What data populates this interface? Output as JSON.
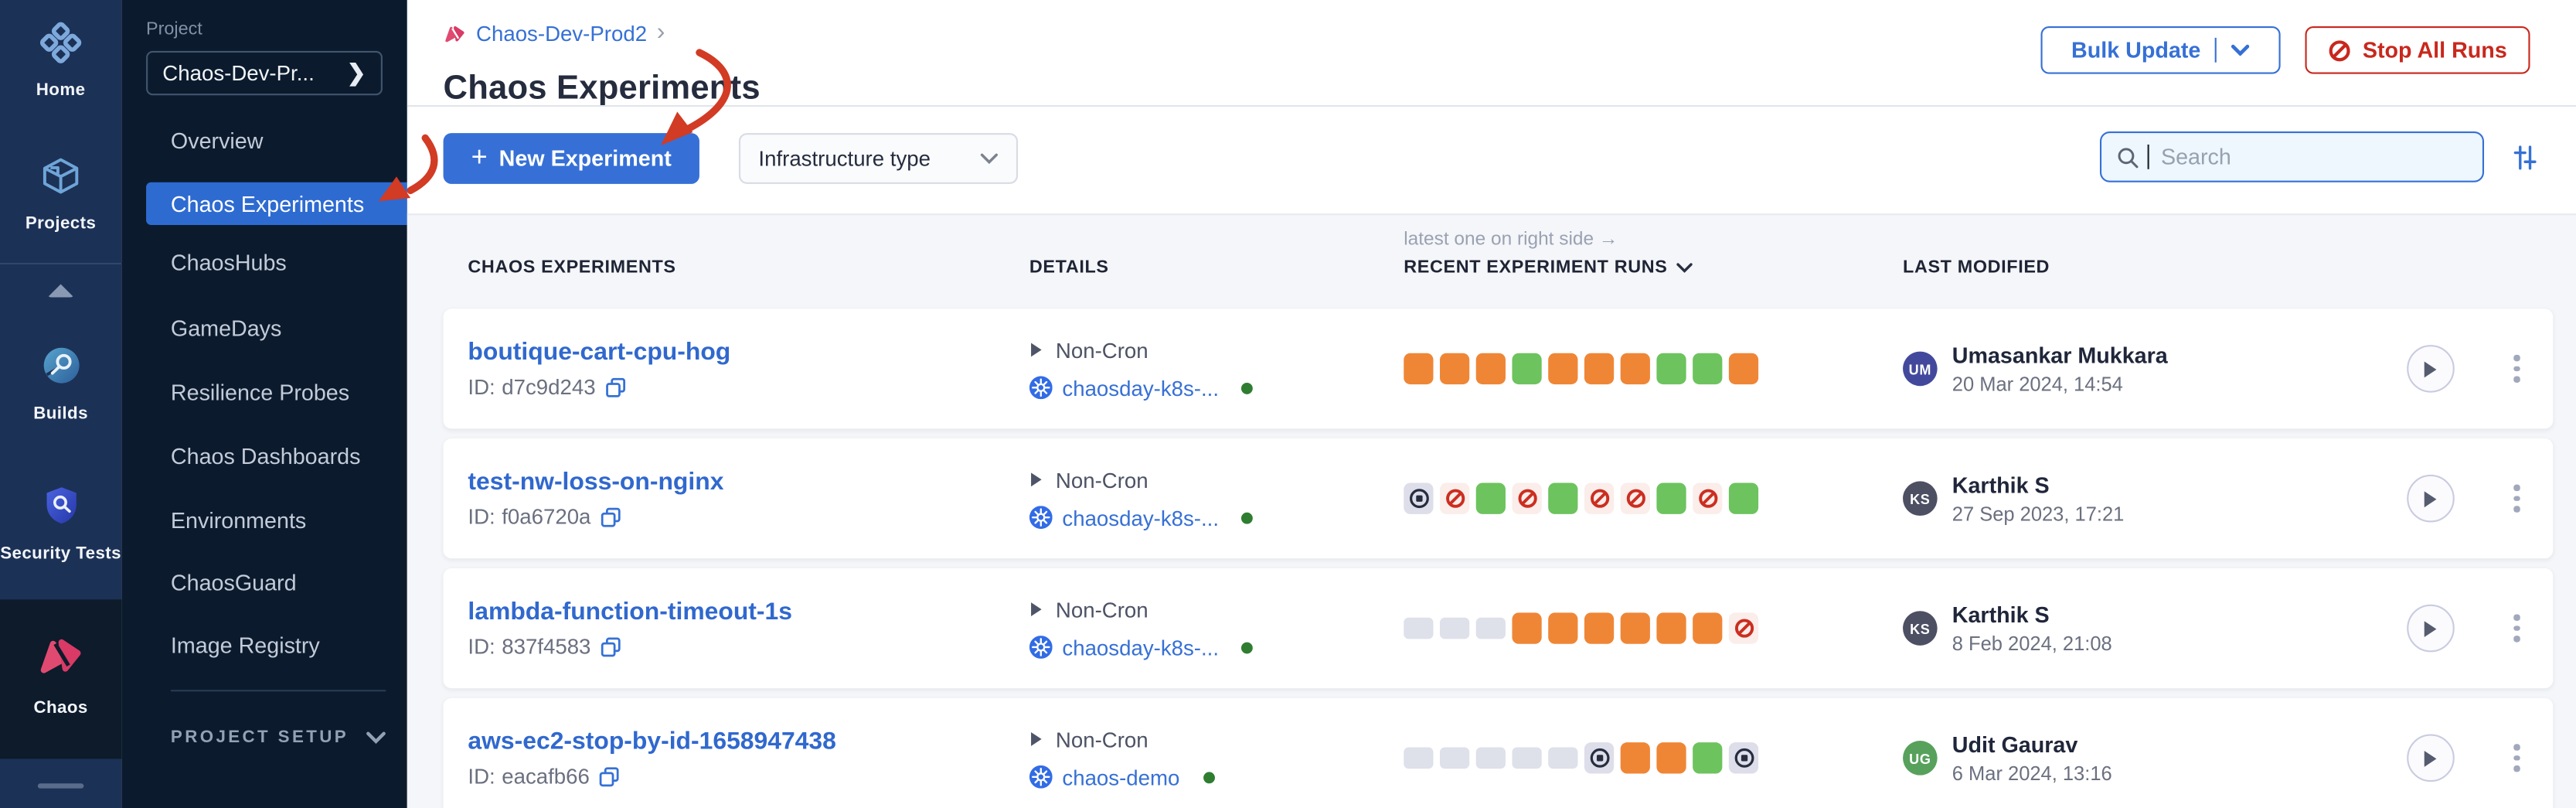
{
  "colors": {
    "accent_blue": "#3670D6",
    "link_blue": "#3068CE",
    "danger_red": "#C8281D",
    "menu_selected": "#2E6BD1",
    "chaos_pink": "#E14A70",
    "run_success": "#6DC35E",
    "run_warning": "#EF8636",
    "run_failed": "#CB2E20",
    "run_failed_bg": "#FAEDEA",
    "run_stopped": "#262D40",
    "run_stopped_bg": "#DDDEE9",
    "run_empty": "#DEE0EA",
    "status_green": "#2F7D31",
    "k8s_blue": "#326CE5",
    "annotation_red": "#D23B24",
    "rail_bg": "#1C3156",
    "panel_bg": "#0B1B2D",
    "rail_selected_bg": "#0D1B2B",
    "table_bg": "#F4F6F9"
  },
  "rail": {
    "items": [
      {
        "label": "Home"
      },
      {
        "label": "Projects"
      },
      {
        "label": "Builds"
      },
      {
        "label": "Security Tests"
      },
      {
        "label": "Chaos",
        "selected": true
      }
    ]
  },
  "panel": {
    "section_label": "Project",
    "project_selector": "Chaos-Dev-Pr...",
    "selector_chevron": "❯",
    "menu": [
      "Overview",
      "Chaos Experiments",
      "ChaosHubs",
      "GameDays",
      "Resilience Probes",
      "Chaos Dashboards",
      "Environments",
      "ChaosGuard",
      "Image Registry"
    ],
    "selected_index": 1,
    "footer": "PROJECT SETUP"
  },
  "header": {
    "breadcrumb": "Chaos-Dev-Prod2",
    "breadcrumb_chevron": "›",
    "title": "Chaos Experiments",
    "bulk_update_label": "Bulk Update",
    "stop_all_label": "Stop All Runs"
  },
  "toolbar": {
    "new_experiment_plus": "+",
    "new_experiment_label": "New Experiment",
    "infra_filter_label": "Infrastructure type",
    "search_placeholder": "Search"
  },
  "table": {
    "note": "latest one on right side →",
    "id_prefix": "ID:",
    "columns": [
      "CHAOS EXPERIMENTS",
      "DETAILS",
      "RECENT EXPERIMENT RUNS",
      "LAST MODIFIED"
    ],
    "rows": [
      {
        "name": "boutique-cart-cpu-hog",
        "id": "d7c9d243",
        "schedule": "Non-Cron",
        "infra": "chaosday-k8s-...",
        "runs": [
          "warning",
          "warning",
          "warning",
          "success",
          "warning",
          "warning",
          "warning",
          "success",
          "success",
          "warning"
        ],
        "user": {
          "initials": "UM",
          "name": "Umasankar Mukkara",
          "avatar_color": "#42499C"
        },
        "date": "20 Mar 2024, 14:54"
      },
      {
        "name": "test-nw-loss-on-nginx",
        "id": "f0a6720a",
        "schedule": "Non-Cron",
        "infra": "chaosday-k8s-...",
        "runs": [
          "stopped",
          "failed",
          "success",
          "failed",
          "success",
          "failed",
          "failed",
          "success",
          "failed",
          "success"
        ],
        "user": {
          "initials": "KS",
          "name": "Karthik S",
          "avatar_color": "#4D4F63"
        },
        "date": "27 Sep 2023, 17:21"
      },
      {
        "name": "lambda-function-timeout-1s",
        "id": "837f4583",
        "schedule": "Non-Cron",
        "infra": "chaosday-k8s-...",
        "runs": [
          "empty",
          "empty",
          "empty",
          "warning",
          "warning",
          "warning",
          "warning",
          "warning",
          "warning",
          "failed"
        ],
        "user": {
          "initials": "KS",
          "name": "Karthik S",
          "avatar_color": "#4D4F63"
        },
        "date": "8 Feb 2024, 21:08"
      },
      {
        "name": "aws-ec2-stop-by-id-1658947438",
        "id": "eacafb66",
        "schedule": "Non-Cron",
        "infra": "chaos-demo",
        "runs": [
          "empty",
          "empty",
          "empty",
          "empty",
          "empty",
          "stopped",
          "warning",
          "warning",
          "success",
          "stopped"
        ],
        "user": {
          "initials": "UG",
          "name": "Udit Gaurav",
          "avatar_color": "#57A15C"
        },
        "date": "6 Mar 2024, 13:16"
      }
    ]
  },
  "annotations": {
    "arrows": [
      "points-to-new-experiment-button",
      "points-to-chaos-experiments-menu-item"
    ]
  }
}
